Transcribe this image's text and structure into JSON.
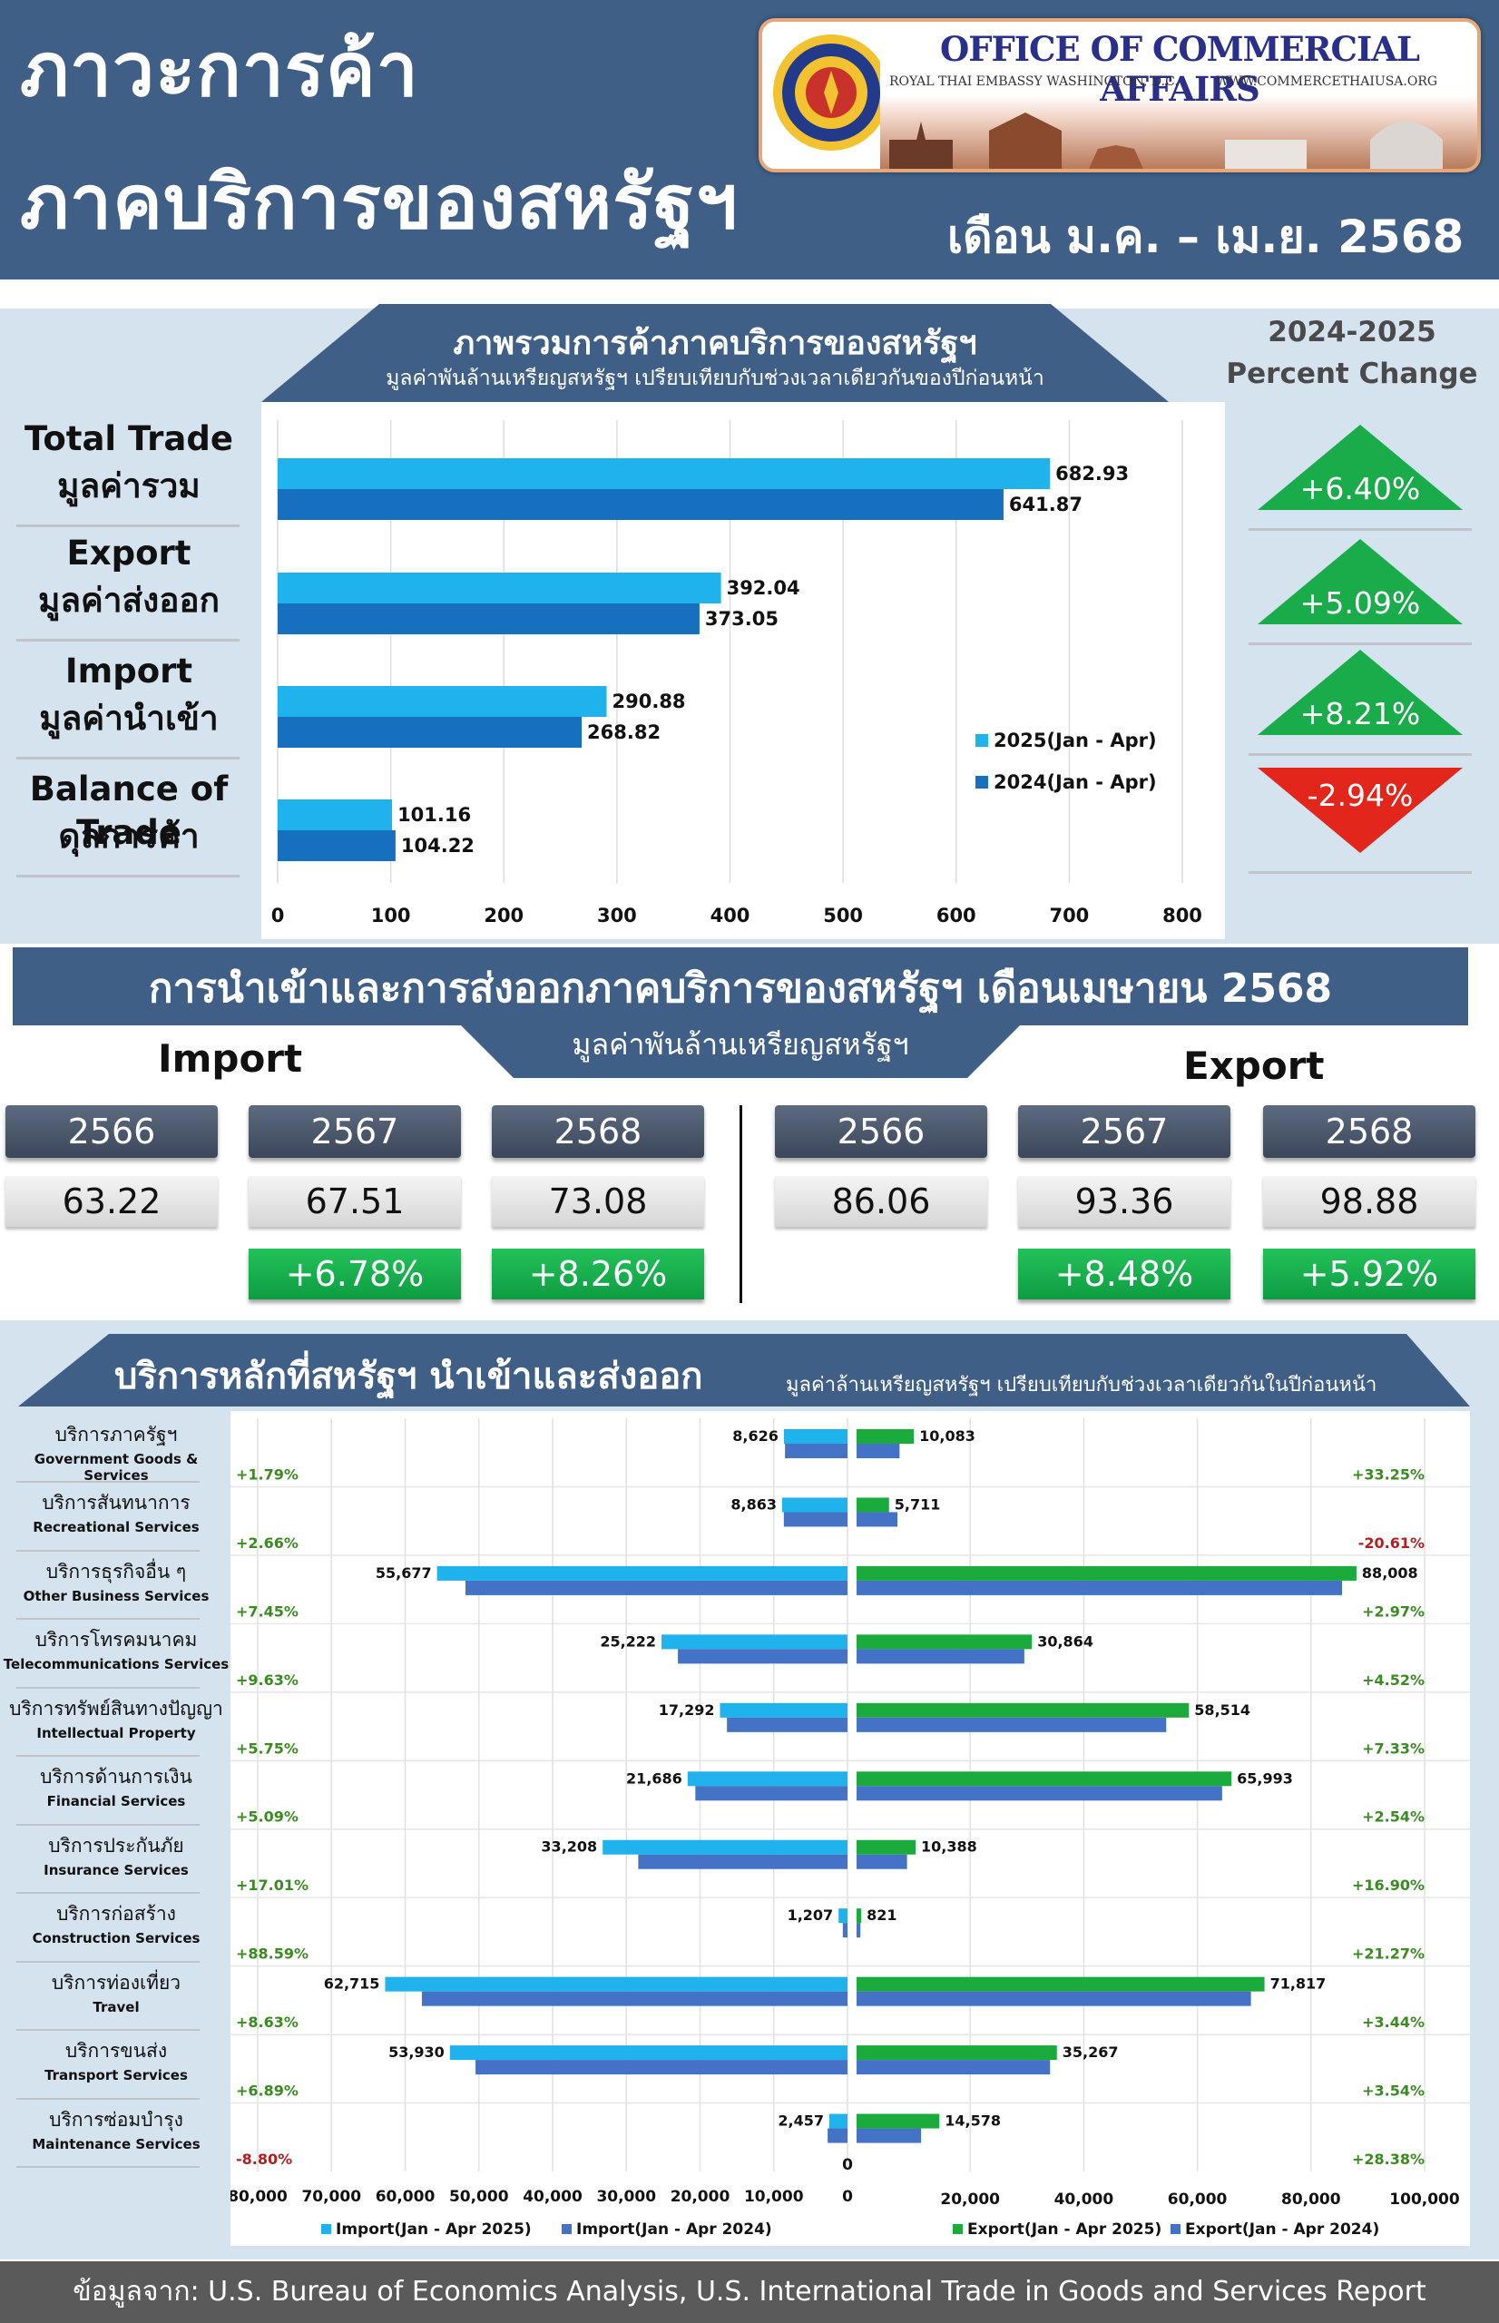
{
  "header": {
    "title_line1": "ภาวะการค้า",
    "title_line2": "ภาคบริการของสหรัฐฯ",
    "period": "เดือน ม.ค. – เม.ย. 2568",
    "logo_title": "OFFICE OF COMMERCIAL AFFAIRS",
    "logo_sub1": "ROYAL THAI EMBASSY WASHINGTON, D.C.",
    "logo_sub2": "WWW.COMMERCETHAIUSA.ORG"
  },
  "overview": {
    "banner_title": "ภาพรวมการค้าภาคบริการของสหรัฐฯ",
    "banner_sub": "มูลค่าพันล้านเหรียญสหรัฐฯ เปรียบเทียบกับช่วงเวลาเดียวกันของปีก่อนหน้า",
    "pct_heading1": "2024-2025",
    "pct_heading2": "Percent Change",
    "rows": [
      {
        "en": "Total Trade",
        "th": "มูลค่ารวม",
        "pct": "+6.40%",
        "dir": "up"
      },
      {
        "en": "Export",
        "th": "มูลค่าส่งออก",
        "pct": "+5.09%",
        "dir": "up"
      },
      {
        "en": "Import",
        "th": "มูลค่านำเข้า",
        "pct": "+8.21%",
        "dir": "up"
      },
      {
        "en": "Balance of Trade",
        "th": "ดุลการค้า",
        "pct": "-2.94%",
        "dir": "down"
      }
    ],
    "colors": {
      "series_2025": "#1fb2ec",
      "series_2024": "#1670bf",
      "up": "#1aab4b",
      "down": "#e2261b"
    }
  },
  "april": {
    "banner_title": "การนำเข้าและการส่งออกภาคบริการของสหรัฐฯ เดือนเมษายน 2568",
    "banner_sub": "มูลค่าพันล้านเหรียญสหรัฐฯ",
    "import_label": "Import",
    "export_label": "Export",
    "import": [
      {
        "year": "2566",
        "value": "63.22",
        "pct": ""
      },
      {
        "year": "2567",
        "value": "67.51",
        "pct": "+6.78%"
      },
      {
        "year": "2568",
        "value": "73.08",
        "pct": "+8.26%"
      }
    ],
    "export": [
      {
        "year": "2566",
        "value": "86.06",
        "pct": ""
      },
      {
        "year": "2567",
        "value": "93.36",
        "pct": "+8.48%"
      },
      {
        "year": "2568",
        "value": "98.88",
        "pct": "+5.92%"
      }
    ]
  },
  "services": {
    "banner_title": "บริการหลักที่สหรัฐฯ นำเข้าและส่งออก",
    "banner_sub": "มูลค่าล้านเหรียญสหรัฐฯ เปรียบเทียบกับช่วงเวลาเดียวกันในปีก่อนหน้า",
    "categories": [
      {
        "th": "บริการภาครัฐฯ",
        "en": "Government Goods & Services",
        "imp_pct": "+1.79%",
        "exp_pct": "+33.25%",
        "exp_neg": false
      },
      {
        "th": "บริการสันทนาการ",
        "en": "Recreational Services",
        "imp_pct": "+2.66%",
        "exp_pct": "-20.61%",
        "exp_neg": true
      },
      {
        "th": "บริการธุรกิจอื่น ๆ",
        "en": "Other Business Services",
        "imp_pct": "+7.45%",
        "exp_pct": "+2.97%",
        "exp_neg": false
      },
      {
        "th": "บริการโทรคมนาคม",
        "en": "Telecommunications Services",
        "imp_pct": "+9.63%",
        "exp_pct": "+4.52%",
        "exp_neg": false
      },
      {
        "th": "บริการทรัพย์สินทางปัญญา",
        "en": "Intellectual Property",
        "imp_pct": "+5.75%",
        "exp_pct": "+7.33%",
        "exp_neg": false
      },
      {
        "th": "บริการด้านการเงิน",
        "en": "Financial Services",
        "imp_pct": "+5.09%",
        "exp_pct": "+2.54%",
        "exp_neg": false
      },
      {
        "th": "บริการประกันภัย",
        "en": "Insurance Services",
        "imp_pct": "+17.01%",
        "exp_pct": "+16.90%",
        "exp_neg": false
      },
      {
        "th": "บริการก่อสร้าง",
        "en": "Construction Services",
        "imp_pct": "+88.59%",
        "exp_pct": "+21.27%",
        "exp_neg": false
      },
      {
        "th": "บริการท่องเที่ยว",
        "en": "Travel",
        "imp_pct": "+8.63%",
        "exp_pct": "+3.44%",
        "exp_neg": false
      },
      {
        "th": "บริการขนส่ง",
        "en": "Transport Services",
        "imp_pct": "+6.89%",
        "exp_pct": "+3.54%",
        "exp_neg": false
      },
      {
        "th": "บริการซ่อมบำรุง",
        "en": "Maintenance Services",
        "imp_pct": "-8.80%",
        "exp_pct": "+28.38%",
        "exp_neg": false
      }
    ],
    "imp_pct_neg_index": 10,
    "legend": [
      "Import(Jan - Apr 2025)",
      "Import(Jan - Apr 2024)",
      "Export(Jan - Apr 2025)",
      "Export(Jan - Apr 2024)"
    ],
    "colors": {
      "imp25": "#1fb2ec",
      "imp24": "#4472c4",
      "exp25": "#1aab3c",
      "exp24": "#4472c4",
      "pos": "#3b8a22",
      "neg": "#b41e1e"
    }
  },
  "footer": {
    "text": "ข้อมูลจาก: U.S. Bureau of Economics Analysis, U.S. International Trade in Goods and Services Report"
  },
  "chart_data": [
    {
      "type": "bar",
      "orientation": "horizontal",
      "categories": [
        "Total Trade",
        "Export",
        "Import",
        "Balance of Trade"
      ],
      "series": [
        {
          "name": "2025(Jan - Apr)",
          "values": [
            682.93,
            392.04,
            290.88,
            101.16
          ]
        },
        {
          "name": "2024(Jan - Apr)",
          "values": [
            641.87,
            373.05,
            268.82,
            104.22
          ]
        }
      ],
      "xlim": [
        0,
        800
      ],
      "xticks": [
        "0",
        "100",
        "200",
        "300",
        "400",
        "500",
        "600",
        "700",
        "800"
      ],
      "legend": "right",
      "grid": true
    },
    {
      "type": "bar",
      "orientation": "horizontal",
      "subtype": "butterfly",
      "categories": [
        "Government Goods & Services",
        "Recreational Services",
        "Other Business Services",
        "Telecommunications Services",
        "Intellectual Property",
        "Financial Services",
        "Insurance Services",
        "Construction Services",
        "Travel",
        "Transport Services",
        "Maintenance Services"
      ],
      "import": {
        "series": [
          {
            "name": "Import(Jan - Apr 2025)",
            "values": [
              8626,
              8863,
              55677,
              25222,
              17292,
              21686,
              33208,
              1207,
              62715,
              53930,
              2457
            ]
          },
          {
            "name": "Import(Jan - Apr 2024)",
            "values": [
              8474,
              8633,
              51816,
              23007,
              16352,
              20635,
              28380,
              640,
              57733,
              50453,
              2694
            ]
          }
        ],
        "xlim": [
          0,
          80000
        ],
        "xticks": [
          "80,000",
          "70,000",
          "60,000",
          "50,000",
          "40,000",
          "30,000",
          "20,000",
          "10,000",
          "0"
        ]
      },
      "export": {
        "series": [
          {
            "name": "Export(Jan - Apr 2025)",
            "values": [
              10083,
              5711,
              88008,
              30864,
              58514,
              65993,
              10388,
              821,
              71817,
              35267,
              14578
            ]
          },
          {
            "name": "Export(Jan - Apr 2024)",
            "values": [
              7567,
              7194,
              85470,
              29529,
              54518,
              64354,
              8886,
              677,
              69429,
              34061,
              11355
            ]
          }
        ],
        "xlim": [
          0,
          100000
        ],
        "xticks": [
          "0",
          "20,000",
          "40,000",
          "60,000",
          "80,000",
          "100,000"
        ]
      },
      "legend": "bottom",
      "grid": true
    }
  ]
}
